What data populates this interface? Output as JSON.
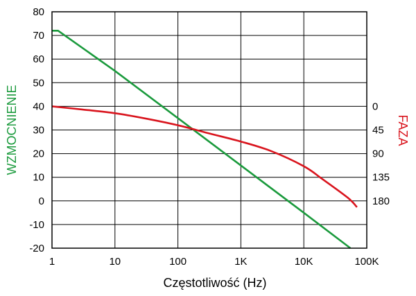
{
  "chart_data": {
    "type": "line",
    "x_scale": "log",
    "x_ticks": [
      1,
      10,
      100,
      1000,
      10000,
      100000
    ],
    "x_tick_labels": [
      "1",
      "10",
      "100",
      "1K",
      "10K",
      "100K"
    ],
    "xlabel": "Częstotliwość (Hz)",
    "xlim": [
      1,
      100000
    ],
    "left_axis": {
      "label": "WZMOCNIENIE",
      "color": "#1a9a3c",
      "ylim": [
        -20,
        80
      ],
      "ticks": [
        80,
        70,
        60,
        50,
        40,
        30,
        20,
        10,
        0,
        -10,
        -20
      ],
      "tick_labels": [
        "80",
        "70",
        "60",
        "50",
        "40",
        "30",
        "20",
        "10",
        "0",
        "-10",
        "-20"
      ]
    },
    "right_axis": {
      "label": "FAZA",
      "color": "#d9141d",
      "ticks": [
        0,
        45,
        90,
        135,
        180
      ],
      "tick_labels": [
        "0",
        "45",
        "90",
        "135",
        "180"
      ]
    },
    "grid": true,
    "series": [
      {
        "axis": "left",
        "color": "#1a9a3c",
        "x": [
          1,
          1.25,
          10,
          100,
          1000,
          10000,
          55000
        ],
        "y": [
          72,
          72,
          55,
          35,
          15,
          -5,
          -20
        ]
      },
      {
        "axis": "right",
        "color": "#d9141d",
        "x": [
          1,
          3,
          10,
          30,
          100,
          300,
          1000,
          3000,
          10000,
          20000,
          50000,
          70000
        ],
        "y": [
          0,
          6,
          13,
          23,
          36,
          51,
          67,
          85,
          114,
          139,
          174,
          192
        ]
      }
    ]
  }
}
